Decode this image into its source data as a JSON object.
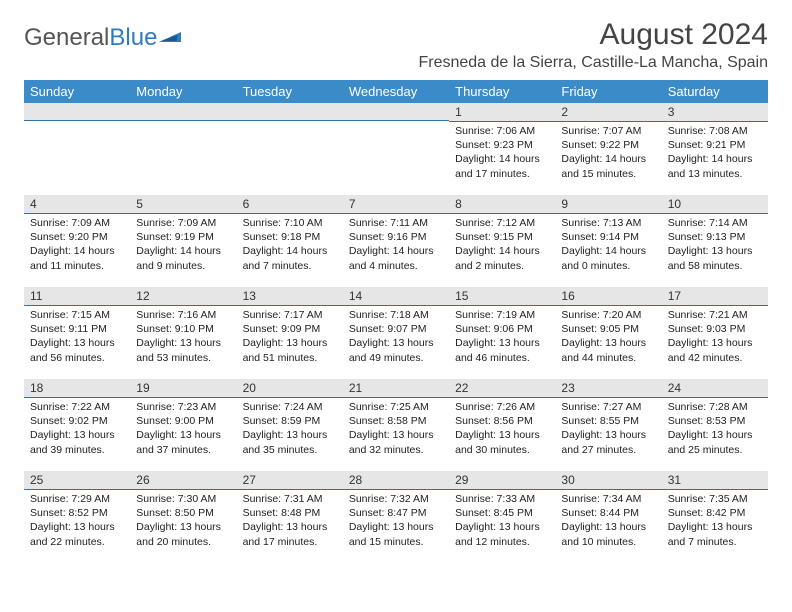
{
  "logo": {
    "text1": "General",
    "text2": "Blue"
  },
  "title": "August 2024",
  "location": "Fresneda de la Sierra, Castille-La Mancha, Spain",
  "colors": {
    "header_bg": "#3b8bc9",
    "daynum_bg": "#e6e6e6",
    "daynum_border": "#2f6fa8",
    "logo_blue": "#2f7bbf"
  },
  "daysOfWeek": [
    "Sunday",
    "Monday",
    "Tuesday",
    "Wednesday",
    "Thursday",
    "Friday",
    "Saturday"
  ],
  "weeks": [
    [
      {
        "n": "",
        "sr": "",
        "ss": "",
        "dl": ""
      },
      {
        "n": "",
        "sr": "",
        "ss": "",
        "dl": ""
      },
      {
        "n": "",
        "sr": "",
        "ss": "",
        "dl": ""
      },
      {
        "n": "",
        "sr": "",
        "ss": "",
        "dl": ""
      },
      {
        "n": "1",
        "sr": "Sunrise: 7:06 AM",
        "ss": "Sunset: 9:23 PM",
        "dl": "Daylight: 14 hours and 17 minutes."
      },
      {
        "n": "2",
        "sr": "Sunrise: 7:07 AM",
        "ss": "Sunset: 9:22 PM",
        "dl": "Daylight: 14 hours and 15 minutes."
      },
      {
        "n": "3",
        "sr": "Sunrise: 7:08 AM",
        "ss": "Sunset: 9:21 PM",
        "dl": "Daylight: 14 hours and 13 minutes."
      }
    ],
    [
      {
        "n": "4",
        "sr": "Sunrise: 7:09 AM",
        "ss": "Sunset: 9:20 PM",
        "dl": "Daylight: 14 hours and 11 minutes."
      },
      {
        "n": "5",
        "sr": "Sunrise: 7:09 AM",
        "ss": "Sunset: 9:19 PM",
        "dl": "Daylight: 14 hours and 9 minutes."
      },
      {
        "n": "6",
        "sr": "Sunrise: 7:10 AM",
        "ss": "Sunset: 9:18 PM",
        "dl": "Daylight: 14 hours and 7 minutes."
      },
      {
        "n": "7",
        "sr": "Sunrise: 7:11 AM",
        "ss": "Sunset: 9:16 PM",
        "dl": "Daylight: 14 hours and 4 minutes."
      },
      {
        "n": "8",
        "sr": "Sunrise: 7:12 AM",
        "ss": "Sunset: 9:15 PM",
        "dl": "Daylight: 14 hours and 2 minutes."
      },
      {
        "n": "9",
        "sr": "Sunrise: 7:13 AM",
        "ss": "Sunset: 9:14 PM",
        "dl": "Daylight: 14 hours and 0 minutes."
      },
      {
        "n": "10",
        "sr": "Sunrise: 7:14 AM",
        "ss": "Sunset: 9:13 PM",
        "dl": "Daylight: 13 hours and 58 minutes."
      }
    ],
    [
      {
        "n": "11",
        "sr": "Sunrise: 7:15 AM",
        "ss": "Sunset: 9:11 PM",
        "dl": "Daylight: 13 hours and 56 minutes."
      },
      {
        "n": "12",
        "sr": "Sunrise: 7:16 AM",
        "ss": "Sunset: 9:10 PM",
        "dl": "Daylight: 13 hours and 53 minutes."
      },
      {
        "n": "13",
        "sr": "Sunrise: 7:17 AM",
        "ss": "Sunset: 9:09 PM",
        "dl": "Daylight: 13 hours and 51 minutes."
      },
      {
        "n": "14",
        "sr": "Sunrise: 7:18 AM",
        "ss": "Sunset: 9:07 PM",
        "dl": "Daylight: 13 hours and 49 minutes."
      },
      {
        "n": "15",
        "sr": "Sunrise: 7:19 AM",
        "ss": "Sunset: 9:06 PM",
        "dl": "Daylight: 13 hours and 46 minutes."
      },
      {
        "n": "16",
        "sr": "Sunrise: 7:20 AM",
        "ss": "Sunset: 9:05 PM",
        "dl": "Daylight: 13 hours and 44 minutes."
      },
      {
        "n": "17",
        "sr": "Sunrise: 7:21 AM",
        "ss": "Sunset: 9:03 PM",
        "dl": "Daylight: 13 hours and 42 minutes."
      }
    ],
    [
      {
        "n": "18",
        "sr": "Sunrise: 7:22 AM",
        "ss": "Sunset: 9:02 PM",
        "dl": "Daylight: 13 hours and 39 minutes."
      },
      {
        "n": "19",
        "sr": "Sunrise: 7:23 AM",
        "ss": "Sunset: 9:00 PM",
        "dl": "Daylight: 13 hours and 37 minutes."
      },
      {
        "n": "20",
        "sr": "Sunrise: 7:24 AM",
        "ss": "Sunset: 8:59 PM",
        "dl": "Daylight: 13 hours and 35 minutes."
      },
      {
        "n": "21",
        "sr": "Sunrise: 7:25 AM",
        "ss": "Sunset: 8:58 PM",
        "dl": "Daylight: 13 hours and 32 minutes."
      },
      {
        "n": "22",
        "sr": "Sunrise: 7:26 AM",
        "ss": "Sunset: 8:56 PM",
        "dl": "Daylight: 13 hours and 30 minutes."
      },
      {
        "n": "23",
        "sr": "Sunrise: 7:27 AM",
        "ss": "Sunset: 8:55 PM",
        "dl": "Daylight: 13 hours and 27 minutes."
      },
      {
        "n": "24",
        "sr": "Sunrise: 7:28 AM",
        "ss": "Sunset: 8:53 PM",
        "dl": "Daylight: 13 hours and 25 minutes."
      }
    ],
    [
      {
        "n": "25",
        "sr": "Sunrise: 7:29 AM",
        "ss": "Sunset: 8:52 PM",
        "dl": "Daylight: 13 hours and 22 minutes."
      },
      {
        "n": "26",
        "sr": "Sunrise: 7:30 AM",
        "ss": "Sunset: 8:50 PM",
        "dl": "Daylight: 13 hours and 20 minutes."
      },
      {
        "n": "27",
        "sr": "Sunrise: 7:31 AM",
        "ss": "Sunset: 8:48 PM",
        "dl": "Daylight: 13 hours and 17 minutes."
      },
      {
        "n": "28",
        "sr": "Sunrise: 7:32 AM",
        "ss": "Sunset: 8:47 PM",
        "dl": "Daylight: 13 hours and 15 minutes."
      },
      {
        "n": "29",
        "sr": "Sunrise: 7:33 AM",
        "ss": "Sunset: 8:45 PM",
        "dl": "Daylight: 13 hours and 12 minutes."
      },
      {
        "n": "30",
        "sr": "Sunrise: 7:34 AM",
        "ss": "Sunset: 8:44 PM",
        "dl": "Daylight: 13 hours and 10 minutes."
      },
      {
        "n": "31",
        "sr": "Sunrise: 7:35 AM",
        "ss": "Sunset: 8:42 PM",
        "dl": "Daylight: 13 hours and 7 minutes."
      }
    ]
  ]
}
